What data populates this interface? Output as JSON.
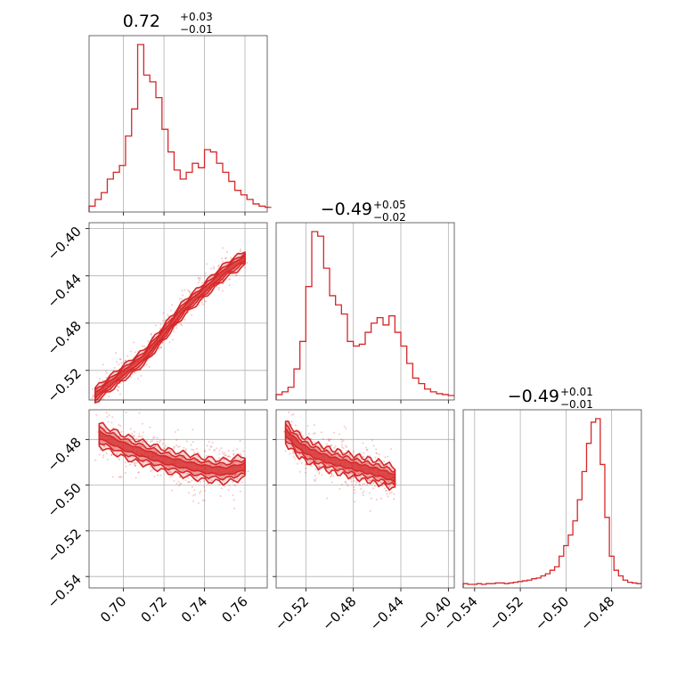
{
  "chart_data": [
    {
      "type": "histogram",
      "panel": "marginal-1",
      "title": {
        "value": "0.72",
        "upper": "+0.03",
        "lower": "−0.01"
      },
      "xlim": [
        0.683,
        0.771
      ],
      "x_ticks": [
        "0.70",
        "0.72",
        "0.74",
        "0.76"
      ],
      "x_tick_values": [
        0.7,
        0.72,
        0.74,
        0.76
      ],
      "color": "#d62728",
      "bins_x": [
        0.683,
        0.686,
        0.689,
        0.692,
        0.695,
        0.698,
        0.701,
        0.704,
        0.707,
        0.71,
        0.713,
        0.716,
        0.719,
        0.722,
        0.725,
        0.728,
        0.731,
        0.734,
        0.737,
        0.74,
        0.743,
        0.746,
        0.749,
        0.752,
        0.755,
        0.758,
        0.761,
        0.764,
        0.767,
        0.77
      ],
      "counts": [
        2,
        8,
        14,
        26,
        32,
        38,
        64,
        88,
        145,
        118,
        112,
        98,
        70,
        50,
        34,
        26,
        32,
        40,
        36,
        52,
        50,
        40,
        32,
        24,
        16,
        12,
        8,
        4,
        2,
        1
      ]
    },
    {
      "type": "histogram",
      "panel": "marginal-2",
      "title": {
        "value": "−0.49",
        "upper": "+0.05",
        "lower": "−0.02"
      },
      "xlim": [
        -0.545,
        -0.395
      ],
      "x_ticks": [
        "−0.52",
        "−0.48",
        "−0.44",
        "−0.40"
      ],
      "x_tick_values": [
        -0.52,
        -0.48,
        -0.44,
        -0.4
      ],
      "color": "#d62728",
      "bins_x": [
        -0.545,
        -0.54,
        -0.535,
        -0.53,
        -0.525,
        -0.52,
        -0.515,
        -0.51,
        -0.505,
        -0.5,
        -0.495,
        -0.49,
        -0.485,
        -0.48,
        -0.475,
        -0.47,
        -0.465,
        -0.46,
        -0.455,
        -0.45,
        -0.445,
        -0.44,
        -0.435,
        -0.43,
        -0.425,
        -0.42,
        -0.415,
        -0.41,
        -0.405,
        -0.4
      ],
      "counts": [
        2,
        5,
        10,
        30,
        60,
        120,
        180,
        175,
        140,
        110,
        100,
        90,
        60,
        55,
        57,
        70,
        80,
        86,
        78,
        88,
        70,
        55,
        36,
        20,
        14,
        8,
        5,
        3,
        2,
        1
      ]
    },
    {
      "type": "histogram",
      "panel": "marginal-3",
      "title": {
        "value": "−0.49",
        "upper": "+0.01",
        "lower": "−0.01"
      },
      "xlim": [
        -0.545,
        -0.467
      ],
      "x_ticks": [
        "−0.54",
        "−0.52",
        "−0.50",
        "−0.48"
      ],
      "x_tick_values": [
        -0.54,
        -0.52,
        -0.5,
        -0.48
      ],
      "color": "#d62728",
      "bins_x": [
        -0.545,
        -0.543,
        -0.541,
        -0.539,
        -0.537,
        -0.535,
        -0.533,
        -0.531,
        -0.529,
        -0.527,
        -0.525,
        -0.523,
        -0.521,
        -0.519,
        -0.517,
        -0.515,
        -0.513,
        -0.511,
        -0.509,
        -0.507,
        -0.505,
        -0.503,
        -0.501,
        -0.499,
        -0.497,
        -0.495,
        -0.493,
        -0.491,
        -0.489,
        -0.487,
        -0.485,
        -0.483,
        -0.481,
        -0.479,
        -0.477,
        -0.475,
        -0.473,
        -0.471,
        -0.469
      ],
      "counts": [
        1,
        0,
        0,
        1,
        0,
        1,
        1,
        2,
        2,
        1,
        2,
        3,
        4,
        5,
        6,
        8,
        9,
        12,
        15,
        20,
        25,
        40,
        55,
        70,
        90,
        120,
        160,
        200,
        230,
        235,
        170,
        95,
        40,
        20,
        12,
        6,
        3,
        2,
        1
      ]
    },
    {
      "type": "scatter-contour",
      "panel": "joint-x1-x2",
      "xlim": [
        0.683,
        0.771
      ],
      "ylim": [
        -0.545,
        -0.395
      ],
      "y_ticks": [
        "−0.40",
        "−0.44",
        "−0.48",
        "−0.52"
      ],
      "y_tick_values": [
        -0.4,
        -0.44,
        -0.48,
        -0.52
      ],
      "color": "#d62728",
      "relation": "strong positive linear",
      "ridge": [
        [
          0.686,
          -0.541
        ],
        [
          0.7,
          -0.522
        ],
        [
          0.71,
          -0.509
        ],
        [
          0.72,
          -0.488
        ],
        [
          0.73,
          -0.467
        ],
        [
          0.74,
          -0.452
        ],
        [
          0.75,
          -0.436
        ],
        [
          0.76,
          -0.425
        ]
      ]
    },
    {
      "type": "scatter-contour",
      "panel": "joint-x1-x3",
      "xlim": [
        0.683,
        0.771
      ],
      "ylim": [
        -0.545,
        -0.467
      ],
      "y_ticks": [
        "−0.48",
        "−0.50",
        "−0.52",
        "−0.54"
      ],
      "y_tick_values": [
        -0.48,
        -0.5,
        -0.52,
        -0.54
      ],
      "color": "#d62728",
      "relation": "weak negative",
      "ridge": [
        [
          0.688,
          -0.478
        ],
        [
          0.7,
          -0.483
        ],
        [
          0.71,
          -0.486
        ],
        [
          0.72,
          -0.489
        ],
        [
          0.73,
          -0.491
        ],
        [
          0.74,
          -0.493
        ],
        [
          0.75,
          -0.494
        ],
        [
          0.76,
          -0.492
        ]
      ]
    },
    {
      "type": "scatter-contour",
      "panel": "joint-x2-x3",
      "xlim": [
        -0.545,
        -0.395
      ],
      "ylim": [
        -0.545,
        -0.467
      ],
      "color": "#d62728",
      "relation": "weak negative",
      "ridge": [
        [
          -0.537,
          -0.477
        ],
        [
          -0.525,
          -0.483
        ],
        [
          -0.515,
          -0.486
        ],
        [
          -0.5,
          -0.489
        ],
        [
          -0.485,
          -0.491
        ],
        [
          -0.47,
          -0.493
        ],
        [
          -0.455,
          -0.495
        ],
        [
          -0.445,
          -0.497
        ]
      ]
    }
  ]
}
